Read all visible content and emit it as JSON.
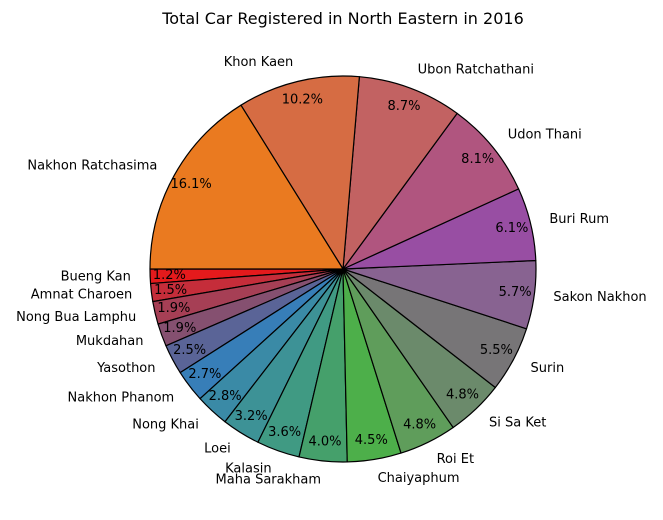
{
  "chart_data": {
    "type": "pie",
    "title": "Total Car Registered in North Eastern in 2016",
    "start_angle_deg": 180,
    "direction": "counterclockwise",
    "edge_color": "#000000",
    "slices": [
      {
        "label": "Bueng Kan",
        "value": 1.2,
        "pct_label": "1.2%",
        "color": "#e41a1c"
      },
      {
        "label": "Amnat Charoen",
        "value": 1.5,
        "pct_label": "1.5%",
        "color": "#c52d3a"
      },
      {
        "label": "Nong Bua Lamphu",
        "value": 1.9,
        "pct_label": "1.9%",
        "color": "#a63f55"
      },
      {
        "label": "Mukdahan",
        "value": 1.9,
        "pct_label": "1.9%",
        "color": "#855070"
      },
      {
        "label": "Yasothon",
        "value": 2.5,
        "pct_label": "2.5%",
        "color": "#5a6497"
      },
      {
        "label": "Nakhon Phanom",
        "value": 2.7,
        "pct_label": "2.7%",
        "color": "#377eb8"
      },
      {
        "label": "Nong Khai",
        "value": 2.8,
        "pct_label": "2.8%",
        "color": "#3a8aa6"
      },
      {
        "label": "Loei",
        "value": 3.2,
        "pct_label": "3.2%",
        "color": "#3d9296"
      },
      {
        "label": "Kalasin",
        "value": 3.6,
        "pct_label": "3.6%",
        "color": "#409a83"
      },
      {
        "label": "Maha Sarakham",
        "value": 4.0,
        "pct_label": "4.0%",
        "color": "#45a06b"
      },
      {
        "label": "Chaiyaphum",
        "value": 4.5,
        "pct_label": "4.5%",
        "color": "#4daf4a"
      },
      {
        "label": "Roi Et",
        "value": 4.8,
        "pct_label": "4.8%",
        "color": "#5f9d5b"
      },
      {
        "label": "Si Sa Ket",
        "value": 4.8,
        "pct_label": "4.8%",
        "color": "#6b8a6b"
      },
      {
        "label": "Surin",
        "value": 5.5,
        "pct_label": "5.5%",
        "color": "#777577"
      },
      {
        "label": "Sakon Nakhon",
        "value": 5.7,
        "pct_label": "5.7%",
        "color": "#886391"
      },
      {
        "label": "Buri Rum",
        "value": 6.1,
        "pct_label": "6.1%",
        "color": "#984ea3"
      },
      {
        "label": "Udon Thani",
        "value": 8.1,
        "pct_label": "8.1%",
        "color": "#b0557f"
      },
      {
        "label": "Ubon Ratchathani",
        "value": 8.7,
        "pct_label": "8.7%",
        "color": "#c26262"
      },
      {
        "label": "Khon Kaen",
        "value": 10.2,
        "pct_label": "10.2%",
        "color": "#d66c43"
      },
      {
        "label": "Nakhon Ratchasima",
        "value": 16.1,
        "pct_label": "16.1%",
        "color": "#ea7a20"
      }
    ]
  }
}
